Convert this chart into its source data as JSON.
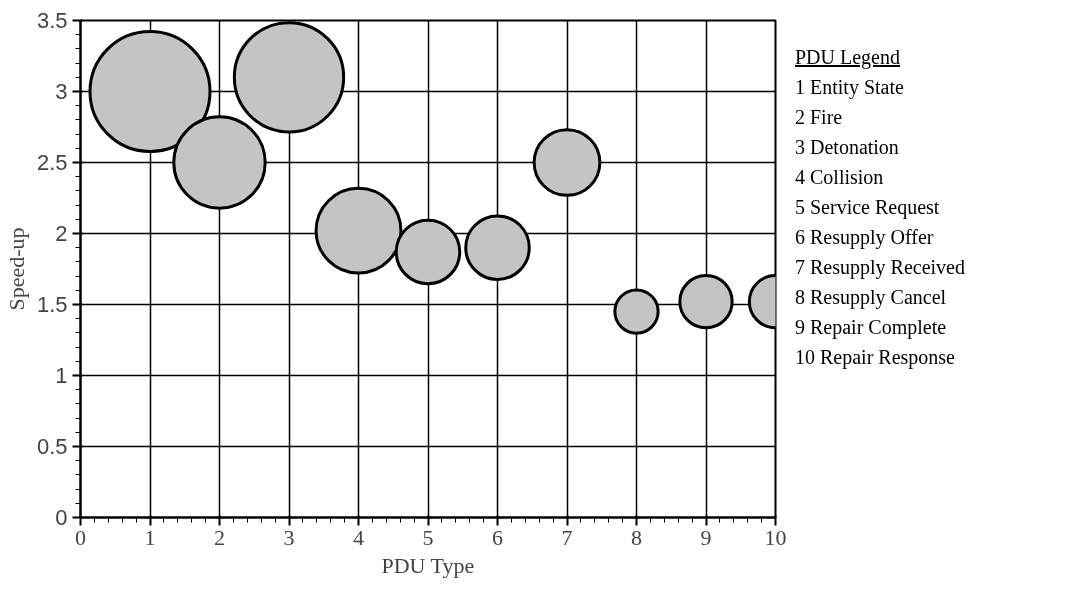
{
  "chart_data": {
    "type": "bubble",
    "xlabel": "PDU Type",
    "ylabel": "Speed-up",
    "x": [
      1,
      2,
      3,
      4,
      5,
      6,
      7,
      8,
      9,
      10
    ],
    "series": [
      {
        "color": "#c4c4c4",
        "values": [
          3.0,
          2.5,
          3.1,
          2.02,
          1.87,
          1.9,
          2.5,
          1.45,
          1.52,
          1.52
        ],
        "sizes": [
          1,
          0.58,
          0.83,
          0.5,
          0.28,
          0.28,
          0.3,
          0.13,
          0.19,
          0.19
        ]
      }
    ],
    "xlim": [
      0,
      10
    ],
    "xticks": [
      0,
      1,
      2,
      3,
      4,
      5,
      6,
      7,
      8,
      9,
      10
    ],
    "ylim": [
      0,
      3.5
    ],
    "yticks": [
      0,
      0.5,
      1,
      1.5,
      2,
      2.5,
      3,
      3.5
    ],
    "grid": true,
    "annotations": [
      "PDU Legend",
      "1 Entity State",
      "2 Fire",
      "3 Detonation",
      "4 Collision",
      "5 Service Request",
      "6 Resupply Offer",
      "7 Resupply Received",
      "8 Resupply Cancel",
      "9 Repair Complete",
      "10 Repair Response"
    ]
  }
}
